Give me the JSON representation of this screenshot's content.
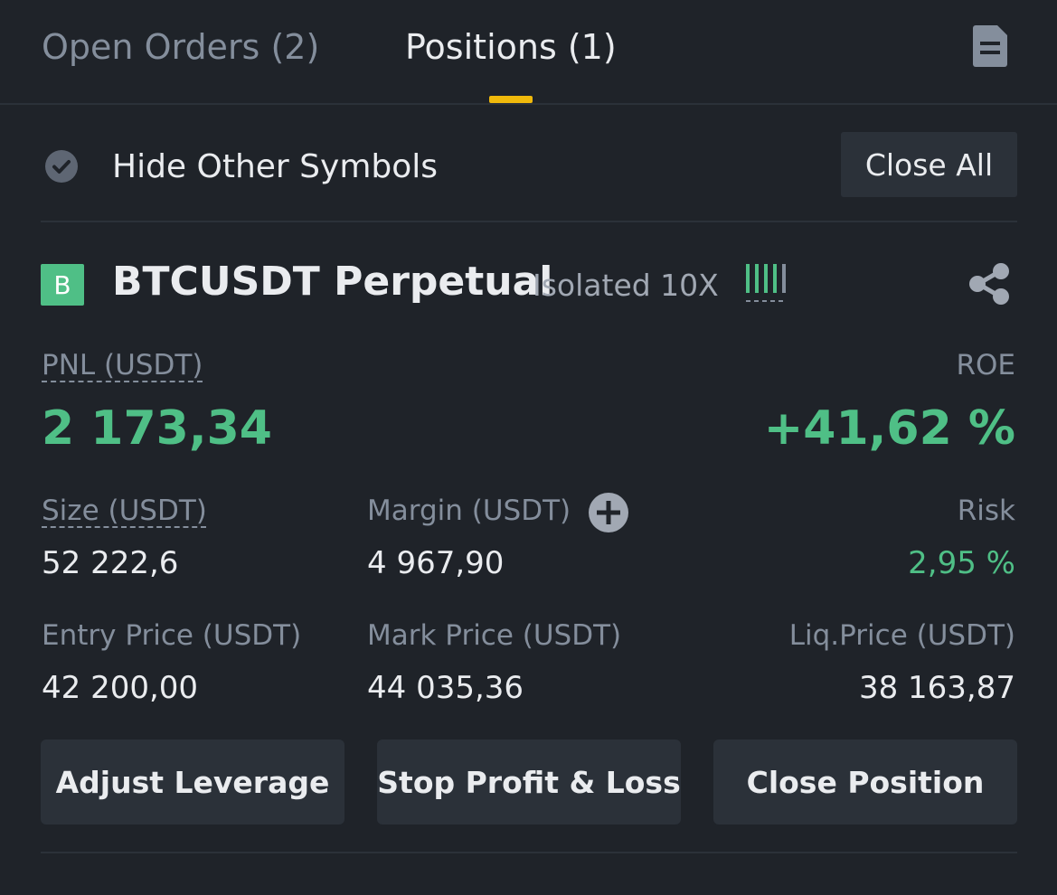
{
  "tabs": [
    {
      "label": "Open Orders (2)",
      "active": false
    },
    {
      "label": "Positions (1)",
      "active": true
    }
  ],
  "filter": {
    "label": "Hide Other Symbols",
    "checked": true
  },
  "close_all_label": "Close All",
  "position": {
    "side_badge": "B",
    "symbol": "BTCUSDT Perpetual",
    "margin_mode": "Isolated 10X",
    "pnl_label": "PNL (USDT)",
    "pnl_value": "2 173,34",
    "roe_label": "ROE",
    "roe_value": "+41,62 %",
    "size_label": "Size (USDT)",
    "size_value": "52 222,6",
    "margin_label": "Margin (USDT)",
    "margin_value": "4 967,90",
    "risk_label": "Risk",
    "risk_value": "2,95 %",
    "entry_label": "Entry Price (USDT)",
    "entry_value": "42 200,00",
    "mark_label": "Mark Price (USDT)",
    "mark_value": "44 035,36",
    "liq_label": "Liq.Price (USDT)",
    "liq_value": "38 163,87"
  },
  "actions": {
    "adjust_leverage": "Adjust Leverage",
    "stop_profit_loss": "Stop Profit & Loss",
    "close_position": "Close Position"
  },
  "colors": {
    "background": "#1f2329",
    "accent": "#f0b90b",
    "positive": "#4fbf86",
    "muted": "#848e9c",
    "button": "#2b3139"
  },
  "icons": {
    "document": "document-icon",
    "check": "check-circle-icon",
    "risk": "risk-level-bars-icon",
    "share": "share-icon",
    "add_margin": "plus-circle-icon"
  }
}
